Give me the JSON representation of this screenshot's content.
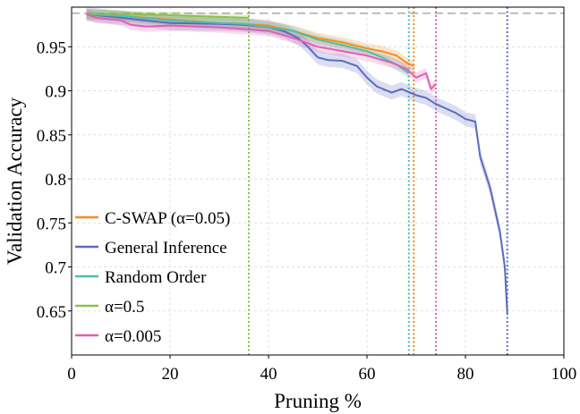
{
  "chart_data": {
    "type": "line",
    "title": "",
    "xlabel": "Pruning %",
    "ylabel": "Validation Accuracy",
    "xlim": [
      0,
      100
    ],
    "ylim": [
      0.6,
      0.995
    ],
    "xticks": [
      0,
      20,
      40,
      60,
      80,
      100
    ],
    "xtick_labels": [
      "0",
      "20",
      "40",
      "60",
      "80",
      "100"
    ],
    "yticks": [
      0.65,
      0.7,
      0.75,
      0.8,
      0.85,
      0.9,
      0.95
    ],
    "ytick_labels": [
      "0.65",
      "0.7",
      "0.75",
      "0.8",
      "0.85",
      "0.9",
      "0.95"
    ],
    "grid": true,
    "legend_position": "lower-left",
    "baseline": {
      "y": 0.988,
      "color": "#999999",
      "style": "dashed"
    },
    "series": [
      {
        "name": "C-SWAP (α=0.05)",
        "color": "#F28E1C",
        "band": 0.006,
        "cutoff": 69.5,
        "x": [
          3,
          10,
          20,
          30,
          35,
          40,
          45,
          50,
          55,
          60,
          63,
          66,
          68,
          69.5
        ],
        "y": [
          0.987,
          0.985,
          0.981,
          0.977,
          0.976,
          0.974,
          0.968,
          0.96,
          0.955,
          0.948,
          0.945,
          0.94,
          0.932,
          0.928
        ]
      },
      {
        "name": "General Inference",
        "color": "#5A6BC0",
        "band": 0.008,
        "cutoff": 88.5,
        "x": [
          3,
          10,
          20,
          30,
          35,
          40,
          43,
          46,
          48,
          50,
          52,
          55,
          58,
          60,
          62,
          65,
          67,
          70,
          72,
          74,
          76,
          78,
          80,
          82,
          83,
          85,
          87,
          88,
          88.5
        ],
        "y": [
          0.987,
          0.983,
          0.977,
          0.976,
          0.975,
          0.972,
          0.968,
          0.96,
          0.95,
          0.938,
          0.935,
          0.934,
          0.928,
          0.915,
          0.905,
          0.898,
          0.902,
          0.895,
          0.892,
          0.885,
          0.88,
          0.875,
          0.868,
          0.865,
          0.825,
          0.79,
          0.74,
          0.7,
          0.647
        ]
      },
      {
        "name": "Random Order",
        "color": "#4DBFA8",
        "band": 0.006,
        "cutoff": 68.5,
        "x": [
          3,
          10,
          20,
          30,
          35,
          40,
          45,
          50,
          55,
          60,
          63,
          66,
          68.5
        ],
        "y": [
          0.987,
          0.985,
          0.98,
          0.977,
          0.976,
          0.972,
          0.968,
          0.958,
          0.952,
          0.945,
          0.938,
          0.93,
          0.92
        ]
      },
      {
        "name": "α=0.5",
        "color": "#8BC34A",
        "band": 0.004,
        "cutoff": 36,
        "x": [
          3,
          10,
          20,
          30,
          36
        ],
        "y": [
          0.988,
          0.987,
          0.986,
          0.984,
          0.983
        ]
      },
      {
        "name": "α=0.005",
        "color": "#E060B0",
        "band": 0.006,
        "cutoff": 74,
        "x": [
          3,
          5,
          10,
          12,
          15,
          20,
          25,
          30,
          35,
          40,
          45,
          50,
          55,
          60,
          65,
          68,
          70,
          72,
          73,
          74
        ],
        "y": [
          0.987,
          0.983,
          0.98,
          0.975,
          0.973,
          0.974,
          0.973,
          0.972,
          0.97,
          0.968,
          0.96,
          0.95,
          0.945,
          0.94,
          0.932,
          0.925,
          0.915,
          0.92,
          0.902,
          0.908
        ]
      }
    ]
  }
}
